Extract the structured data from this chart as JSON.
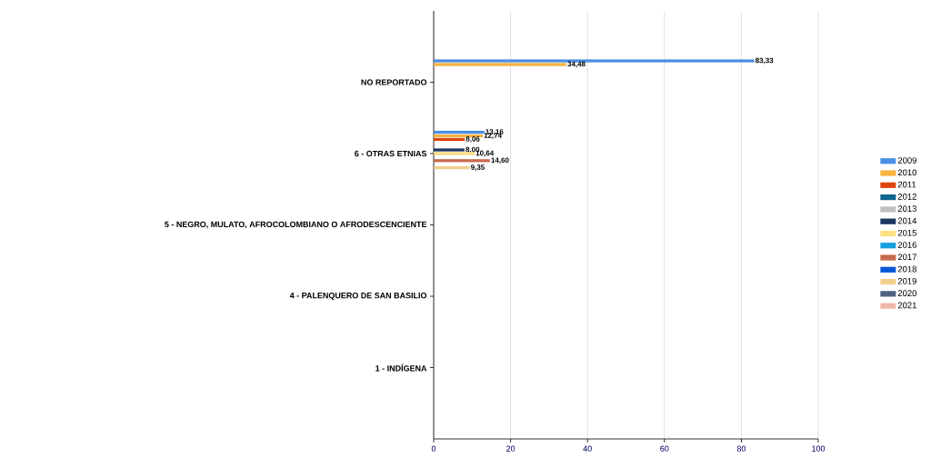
{
  "chart_data": {
    "type": "bar",
    "orientation": "horizontal",
    "categories": [
      "NO REPORTADO",
      "6 - OTRAS ETNIAS",
      "5 - NEGRO, MULATO, AFROCOLOMBIANO O AFRODESCENCIENTE",
      "4 - PALENQUERO DE SAN BASILIO",
      "1 - INDÍGENA"
    ],
    "series": [
      {
        "name": "2009",
        "color": "#4a8fe7",
        "values": [
          83.33,
          13.16,
          null,
          null,
          null
        ],
        "value_labels": [
          "83,33",
          "13,16",
          null,
          null,
          null
        ]
      },
      {
        "name": "2010",
        "color": "#f9b33f",
        "values": [
          34.48,
          12.74,
          null,
          null,
          null
        ],
        "value_labels": [
          "34,48",
          "12,74",
          null,
          null,
          null
        ]
      },
      {
        "name": "2011",
        "color": "#e0440e",
        "values": [
          null,
          8.06,
          null,
          null,
          null
        ],
        "value_labels": [
          null,
          "8,06",
          null,
          null,
          null
        ]
      },
      {
        "name": "2012",
        "color": "#0d6590",
        "values": [
          null,
          null,
          null,
          null,
          null
        ]
      },
      {
        "name": "2013",
        "color": "#c0c0c0",
        "values": [
          null,
          null,
          null,
          null,
          null
        ]
      },
      {
        "name": "2014",
        "color": "#1b365f",
        "values": [
          null,
          8.0,
          null,
          null,
          null
        ],
        "value_labels": [
          null,
          "8,00",
          null,
          null,
          null
        ]
      },
      {
        "name": "2015",
        "color": "#ffdf80",
        "values": [
          null,
          10.64,
          null,
          null,
          null
        ],
        "value_labels": [
          null,
          "10,64",
          null,
          null,
          null
        ]
      },
      {
        "name": "2016",
        "color": "#16a0de",
        "values": [
          null,
          null,
          null,
          null,
          null
        ]
      },
      {
        "name": "2017",
        "color": "#c96a4d",
        "values": [
          null,
          14.6,
          null,
          null,
          null
        ],
        "value_labels": [
          null,
          "14,60",
          null,
          null,
          null
        ]
      },
      {
        "name": "2018",
        "color": "#0859d6",
        "values": [
          null,
          null,
          null,
          null,
          null
        ]
      },
      {
        "name": "2019",
        "color": "#f2cf8c",
        "values": [
          null,
          9.35,
          null,
          null,
          null
        ],
        "value_labels": [
          null,
          "9,35",
          null,
          null,
          null
        ]
      },
      {
        "name": "2020",
        "color": "#4e6280",
        "values": [
          null,
          null,
          null,
          null,
          null
        ]
      },
      {
        "name": "2021",
        "color": "#f0b8a8",
        "values": [
          null,
          null,
          null,
          null,
          null
        ]
      }
    ],
    "xlim": [
      0,
      100
    ],
    "xticks": [
      0,
      20,
      40,
      60,
      80,
      100
    ],
    "grid": "x",
    "legend": "right"
  }
}
